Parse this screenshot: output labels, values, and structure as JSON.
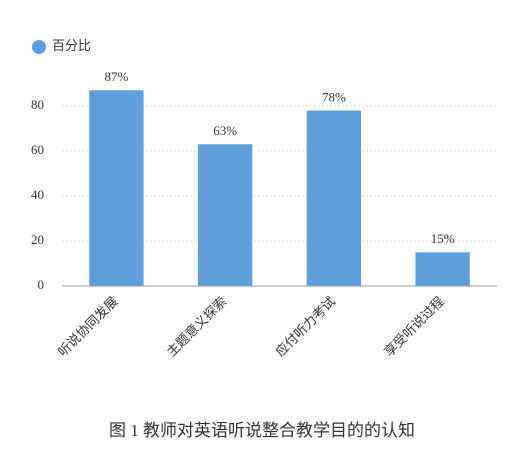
{
  "chart_data": {
    "type": "bar",
    "title": "图 1  教师对英语听说整合教学目的的认知",
    "categories": [
      "听说协同发展",
      "主题意义探索",
      "应付听力考试",
      "享受听说过程"
    ],
    "series": [
      {
        "name": "百分比",
        "color": "#5fa0dc",
        "values": [
          87,
          63,
          78,
          15
        ],
        "value_labels": [
          "87%",
          "63%",
          "78%",
          "15%"
        ]
      }
    ],
    "ylim": [
      0,
      90
    ],
    "yticks": [
      0,
      20,
      40,
      60,
      80
    ],
    "grid": true,
    "legend": "top-left"
  }
}
